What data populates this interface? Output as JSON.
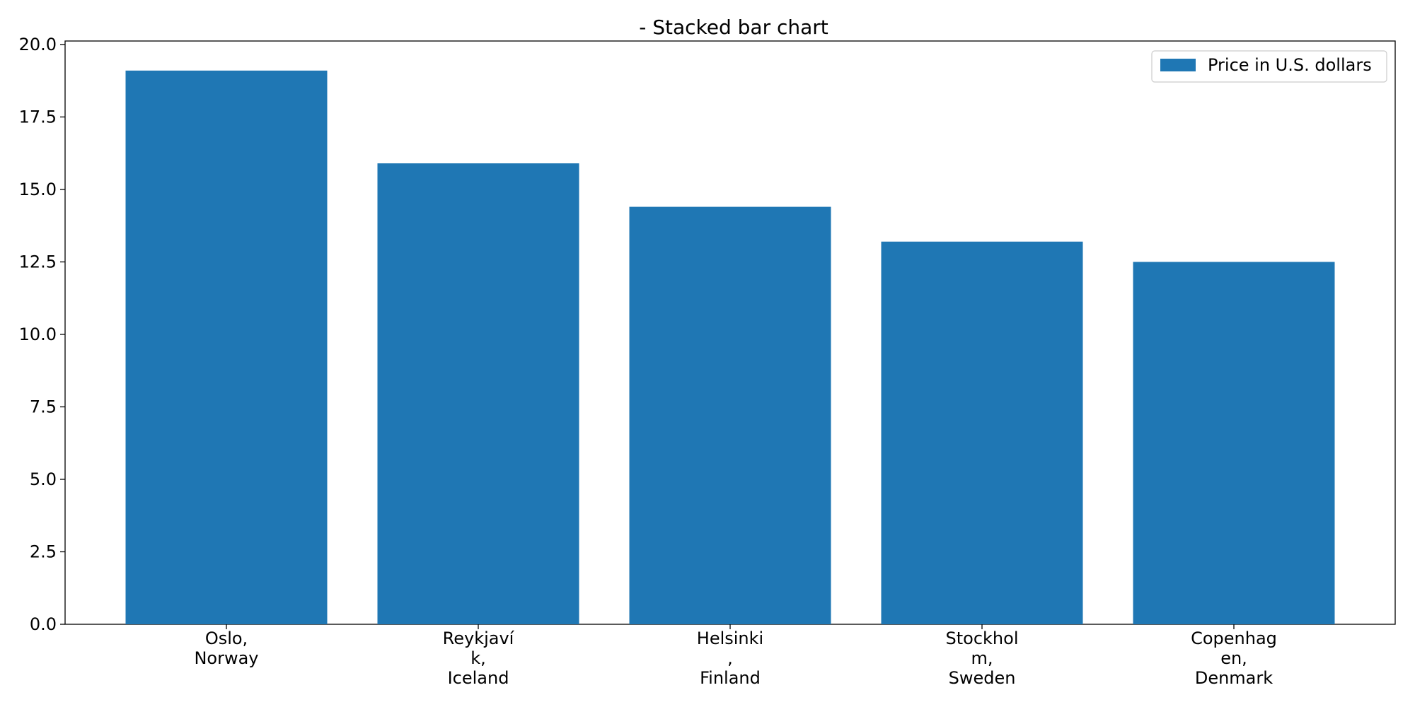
{
  "chart_data": {
    "type": "bar",
    "title": "- Stacked bar chart",
    "xlabel": "",
    "ylabel": "",
    "categories": [
      "Oslo, Norway",
      "Reykjavík, Iceland",
      "Helsinki, Finland",
      "Stockholm, Sweden",
      "Copenhagen, Denmark"
    ],
    "category_tick_lines": [
      [
        "Oslo,",
        "Norway"
      ],
      [
        "Reykjaví",
        "k,",
        "Iceland"
      ],
      [
        "Helsinki",
        ",",
        "Finland"
      ],
      [
        "Stockhol",
        "m,",
        "Sweden"
      ],
      [
        "Copenhag",
        "en,",
        "Denmark"
      ]
    ],
    "series": [
      {
        "name": "Price in U.S. dollars",
        "values": [
          19.1,
          15.9,
          14.4,
          13.2,
          12.5
        ],
        "color": "#1f77b4"
      }
    ],
    "ylim": [
      0,
      20.12
    ],
    "yticks": [
      0,
      2.5,
      5,
      7.5,
      10,
      12.5,
      15,
      17.5,
      20
    ],
    "ytick_labels": [
      "0.0",
      "2.5",
      "5.0",
      "7.5",
      "10.0",
      "12.5",
      "15.0",
      "17.5",
      "20.0"
    ],
    "grid": false,
    "legend_position": "top-right"
  }
}
